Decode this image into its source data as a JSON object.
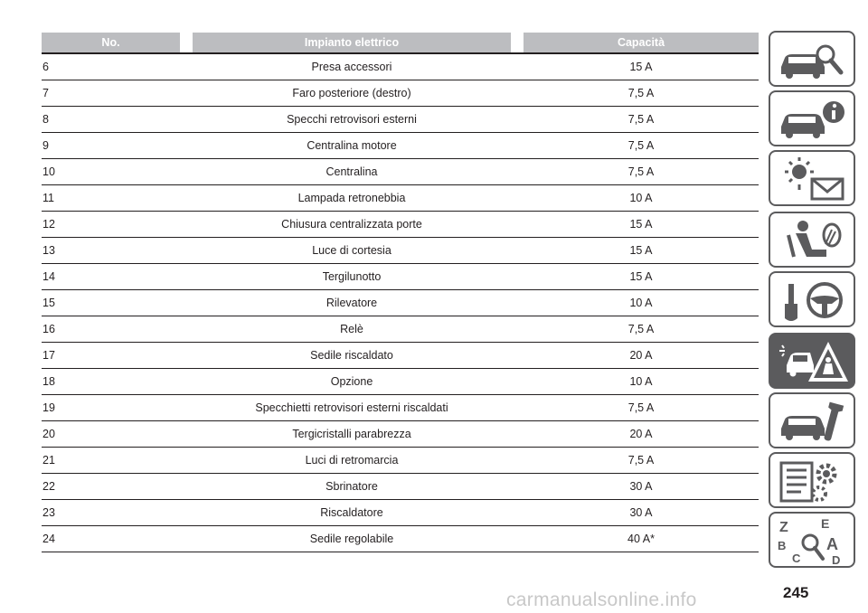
{
  "table": {
    "headers": {
      "no": "No.",
      "system": "Impianto elettrico",
      "capacity": "Capacità"
    },
    "rows": [
      {
        "no": "6",
        "description": "Presa accessori",
        "capacity": "15 A"
      },
      {
        "no": "7",
        "description": "Faro posteriore (destro)",
        "capacity": "7,5 A"
      },
      {
        "no": "8",
        "description": "Specchi retrovisori esterni",
        "capacity": "7,5 A"
      },
      {
        "no": "9",
        "description": "Centralina motore",
        "capacity": "7,5 A"
      },
      {
        "no": "10",
        "description": "Centralina",
        "capacity": "7,5 A"
      },
      {
        "no": "11",
        "description": "Lampada retronebbia",
        "capacity": "10 A"
      },
      {
        "no": "12",
        "description": "Chiusura centralizzata porte",
        "capacity": "15 A"
      },
      {
        "no": "13",
        "description": "Luce di cortesia",
        "capacity": "15 A"
      },
      {
        "no": "14",
        "description": "Tergilunotto",
        "capacity": "15 A"
      },
      {
        "no": "15",
        "description": "Rilevatore",
        "capacity": "10 A"
      },
      {
        "no": "16",
        "description": "Relè",
        "capacity": "7,5 A"
      },
      {
        "no": "17",
        "description": "Sedile riscaldato",
        "capacity": "20 A"
      },
      {
        "no": "18",
        "description": "Opzione",
        "capacity": "10 A"
      },
      {
        "no": "19",
        "description": "Specchietti retrovisori esterni riscaldati",
        "capacity": "7,5 A"
      },
      {
        "no": "20",
        "description": "Tergicristalli parabrezza",
        "capacity": "20 A"
      },
      {
        "no": "21",
        "description": "Luci di retromarcia",
        "capacity": "7,5 A"
      },
      {
        "no": "22",
        "description": "Sbrinatore",
        "capacity": "30 A"
      },
      {
        "no": "23",
        "description": "Riscaldatore",
        "capacity": "30 A"
      },
      {
        "no": "24",
        "description": "Sedile regolabile",
        "capacity": "40 A*"
      }
    ]
  },
  "side_tabs": [
    {
      "icon": "car-magnifier-icon",
      "active": false
    },
    {
      "icon": "car-info-icon",
      "active": false
    },
    {
      "icon": "warning-lights-message-icon",
      "active": false
    },
    {
      "icon": "seat-airbag-icon",
      "active": false
    },
    {
      "icon": "key-steering-wheel-icon",
      "active": false
    },
    {
      "icon": "car-emergency-warning-icon",
      "active": true
    },
    {
      "icon": "car-wrench-icon",
      "active": false
    },
    {
      "icon": "specs-gears-icon",
      "active": false
    },
    {
      "icon": "index-letters-icon",
      "active": false
    }
  ],
  "page_number": "245",
  "watermark": "carmanualsonline.info",
  "colors": {
    "header_bg": "#bcbdc0",
    "tab_border": "#5b5b5d",
    "text": "#231f20"
  }
}
